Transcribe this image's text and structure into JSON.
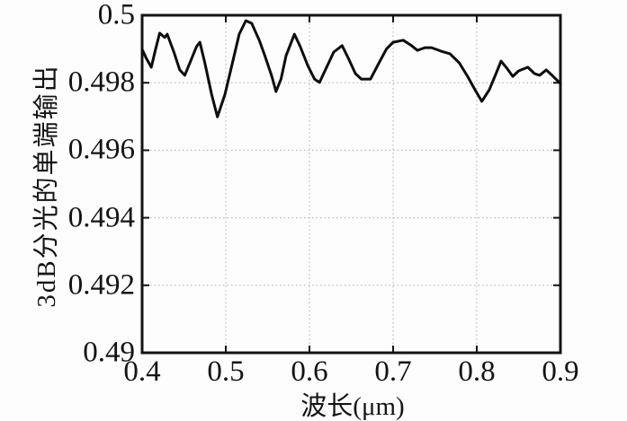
{
  "figure": {
    "background": "#fdfdfd",
    "frame_color": "#141414",
    "grid_color": "#ababab",
    "text_color": "#141414"
  },
  "chart_data": {
    "type": "line",
    "title": "",
    "xlabel": "波长(μm)",
    "ylabel": "3dB分光的单端输出",
    "xlim": [
      0.4,
      0.9
    ],
    "ylim": [
      0.49,
      0.5
    ],
    "x_ticks": [
      0.4,
      0.5,
      0.6,
      0.7,
      0.8,
      0.9
    ],
    "x_tick_labels": [
      "0.4",
      "0.5",
      "0.6",
      "0.7",
      "0.8",
      "0.9"
    ],
    "y_ticks": [
      0.49,
      0.492,
      0.494,
      0.496,
      0.498,
      0.5
    ],
    "y_tick_labels": [
      "0.49",
      "0.492",
      "0.494",
      "0.496",
      "0.498",
      "0.5"
    ],
    "grid": true,
    "grid_style": "dotted",
    "legend": "none",
    "line_color": "#0d0d0d",
    "series": [
      {
        "x": [
          0.4,
          0.405,
          0.411,
          0.416,
          0.421,
          0.427,
          0.43,
          0.438,
          0.445,
          0.451,
          0.458,
          0.465,
          0.469,
          0.475,
          0.483,
          0.49,
          0.499,
          0.508,
          0.516,
          0.524,
          0.531,
          0.54,
          0.547,
          0.555,
          0.56,
          0.566,
          0.572,
          0.582,
          0.589,
          0.598,
          0.606,
          0.612,
          0.619,
          0.629,
          0.639,
          0.647,
          0.655,
          0.662,
          0.673,
          0.682,
          0.692,
          0.7,
          0.712,
          0.721,
          0.729,
          0.738,
          0.746,
          0.757,
          0.768,
          0.779,
          0.789,
          0.798,
          0.806,
          0.815,
          0.823,
          0.829,
          0.836,
          0.843,
          0.85,
          0.861,
          0.869,
          0.875,
          0.883,
          0.89,
          0.9
        ],
        "y": [
          0.49899,
          0.49872,
          0.49846,
          0.49899,
          0.49947,
          0.49934,
          0.49944,
          0.49891,
          0.49838,
          0.49822,
          0.49864,
          0.49907,
          0.4992,
          0.49859,
          0.49766,
          0.49699,
          0.49766,
          0.49859,
          0.49944,
          0.49984,
          0.49976,
          0.49926,
          0.49878,
          0.49819,
          0.49774,
          0.49811,
          0.4988,
          0.49944,
          0.49907,
          0.49851,
          0.49811,
          0.49801,
          0.49838,
          0.49891,
          0.4991,
          0.4987,
          0.49827,
          0.49811,
          0.49811,
          0.49854,
          0.499,
          0.4992,
          0.49926,
          0.49912,
          0.49896,
          0.49904,
          0.49904,
          0.49894,
          0.49886,
          0.49859,
          0.49819,
          0.49779,
          0.49745,
          0.49779,
          0.49827,
          0.49864,
          0.49843,
          0.49819,
          0.49835,
          0.49846,
          0.49827,
          0.49822,
          0.49838,
          0.49822,
          0.49798
        ]
      }
    ]
  }
}
